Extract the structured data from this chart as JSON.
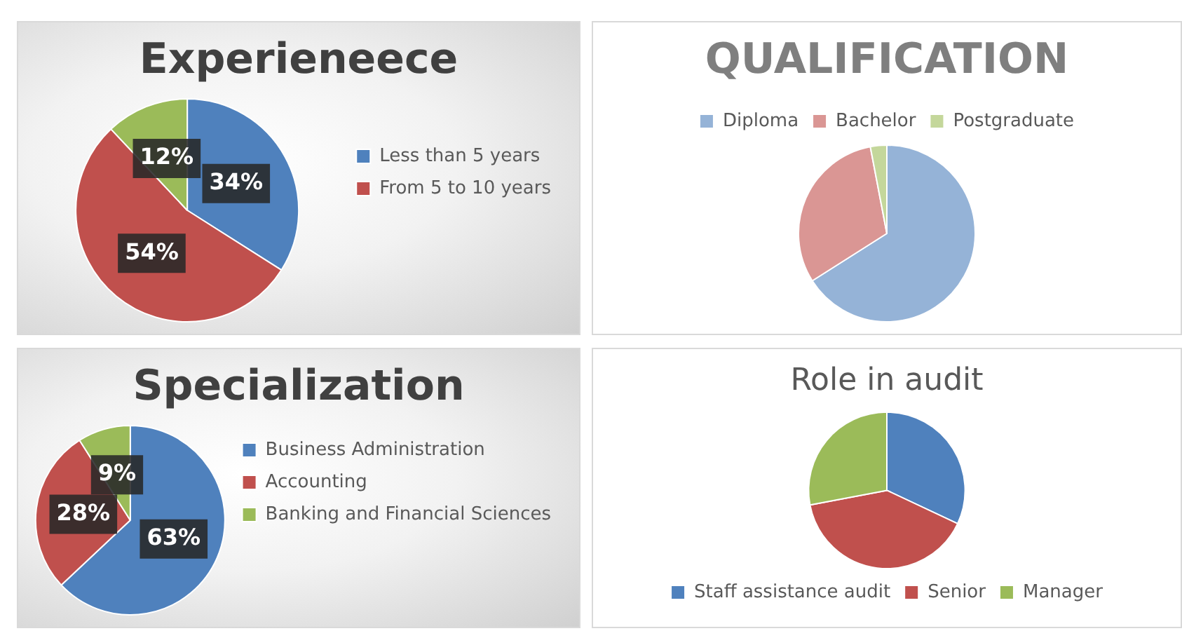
{
  "chart_data": [
    {
      "type": "pie",
      "title": "Experieneece",
      "categories": [
        "Less than 5 years",
        "From 5 to 10 years",
        null
      ],
      "values": [
        34,
        54,
        12
      ],
      "colors": [
        "#4f81bd",
        "#c0504d",
        "#9bbb59"
      ],
      "value_labels": [
        "34%",
        "54%",
        "12%"
      ],
      "legend": "right"
    },
    {
      "type": "pie",
      "title": "QUALIFICATION",
      "categories": [
        "Diploma",
        "Bachelor",
        "Postgraduate"
      ],
      "values": [
        66,
        31,
        3
      ],
      "colors": [
        "#95b3d7",
        "#da9694",
        "#c4d79b"
      ],
      "legend": "top"
    },
    {
      "type": "pie",
      "title": "Specialization",
      "categories": [
        "Business Administration",
        "Accounting",
        "Banking and Financial Sciences"
      ],
      "values": [
        63,
        28,
        9
      ],
      "colors": [
        "#4f81bd",
        "#c0504d",
        "#9bbb59"
      ],
      "value_labels": [
        "63%",
        "28%",
        "9%"
      ],
      "legend": "right"
    },
    {
      "type": "pie",
      "title": "Role in audit",
      "categories": [
        "Staff assistance audit",
        "Senior",
        "Manager"
      ],
      "values": [
        32,
        40,
        28
      ],
      "colors": [
        "#4f81bd",
        "#c0504d",
        "#9bbb59"
      ],
      "legend": "bottom"
    }
  ]
}
